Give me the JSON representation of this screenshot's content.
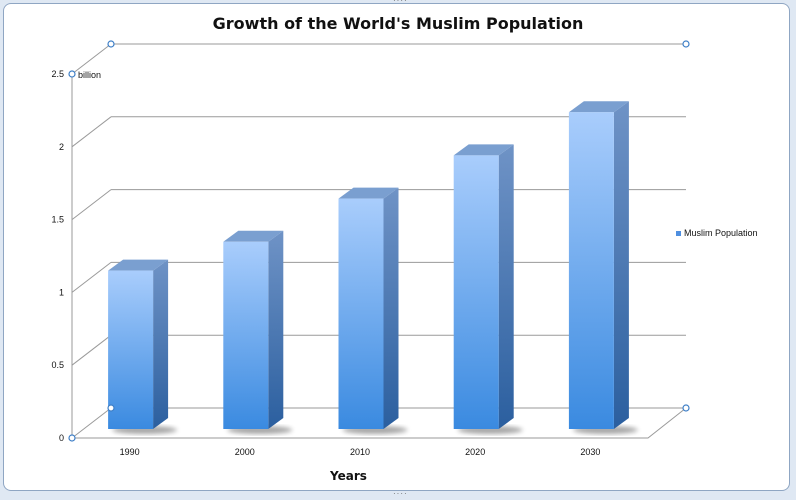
{
  "chart_data": {
    "type": "bar",
    "title": "Growth of the World's Muslim Population",
    "xlabel": "Years",
    "ylabel": "",
    "unit_label": "billion",
    "categories": [
      "1990",
      "2000",
      "2010",
      "2020",
      "2030"
    ],
    "series": [
      {
        "name": "Muslim Population",
        "values": [
          1.1,
          1.3,
          1.6,
          1.9,
          2.2
        ]
      }
    ],
    "ylim": [
      0,
      2.5
    ],
    "yticks": [
      "0",
      "0.5",
      "1",
      "1.5",
      "2",
      "2.5"
    ],
    "grid": true,
    "legend_position": "right",
    "colors": {
      "bar_top": "#a9cdfc",
      "bar_bottom": "#3a8ae0",
      "bar_side": "#2f68ad",
      "bar_cap": "#7a9fd0",
      "grid": "#9a9a9a"
    }
  }
}
